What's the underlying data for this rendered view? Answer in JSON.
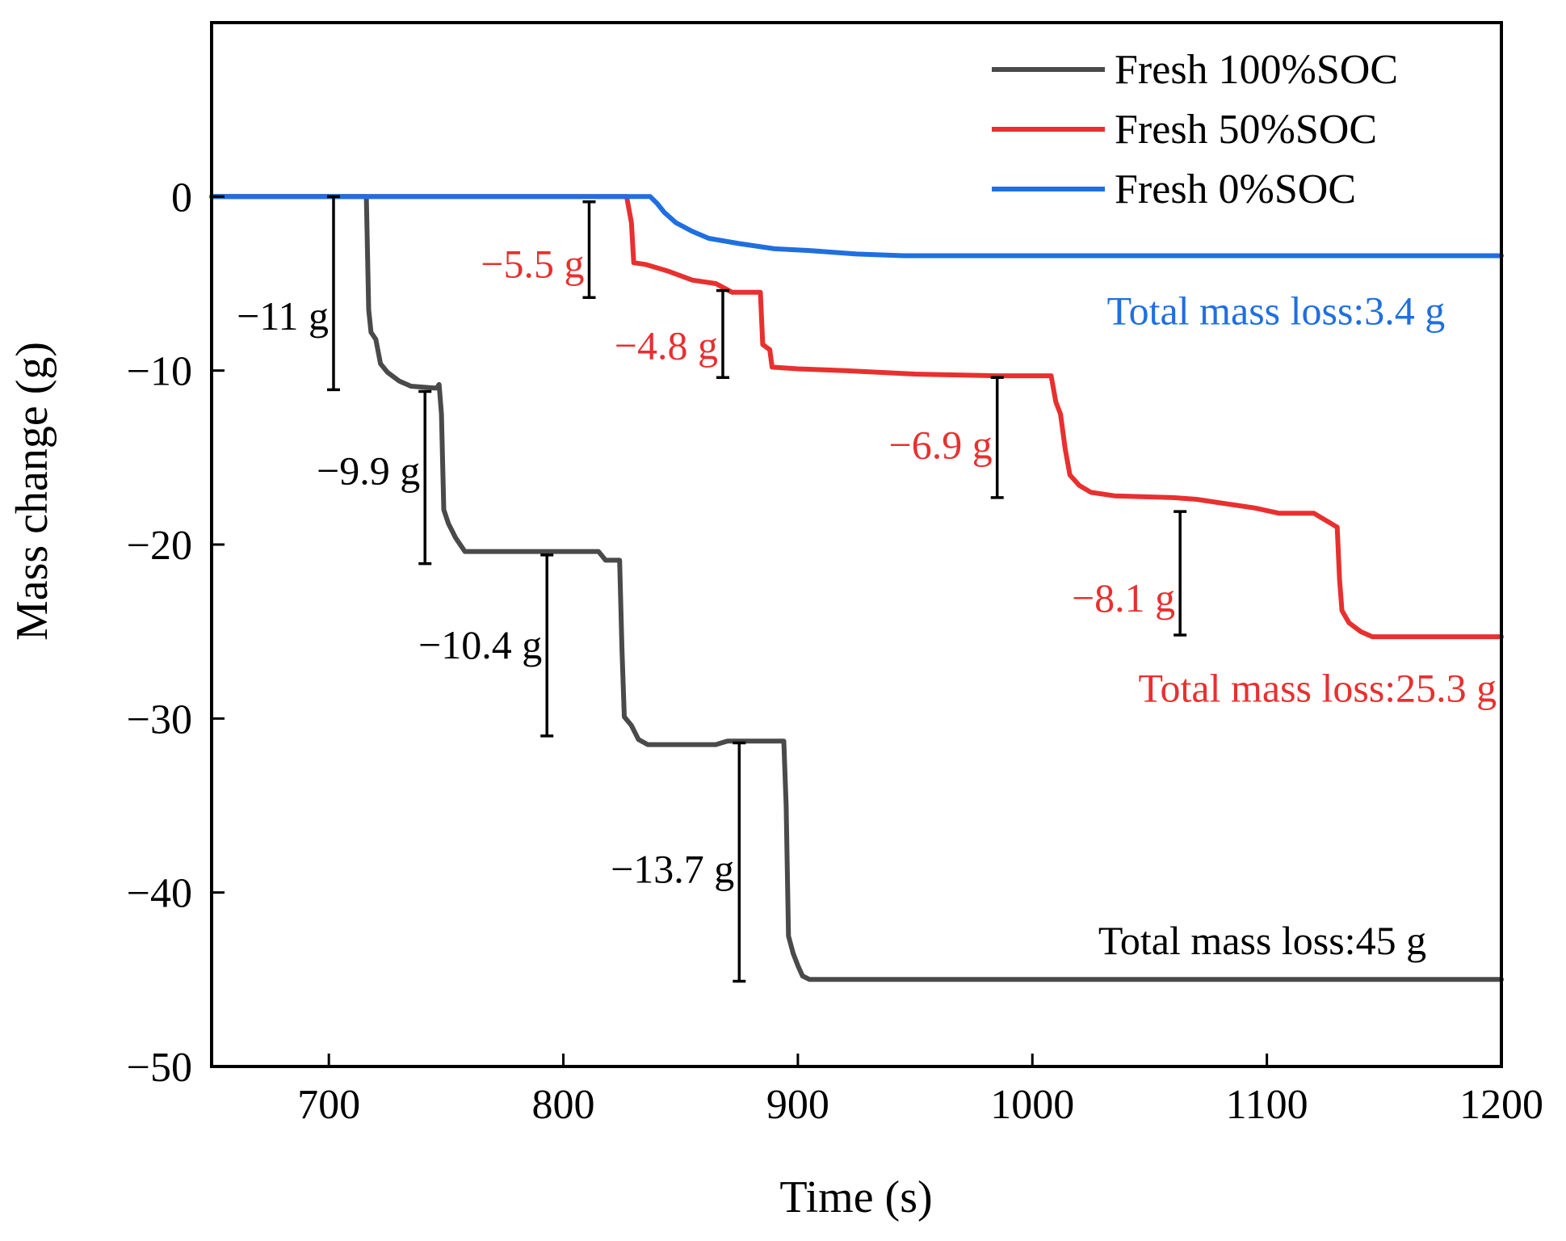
{
  "chart_data": {
    "type": "line",
    "title": "",
    "xlabel": "Time (s)",
    "ylabel": "Mass change (g)",
    "xlim": [
      650,
      1200
    ],
    "ylim": [
      -50,
      10
    ],
    "xticks": [
      700,
      800,
      900,
      1000,
      1100,
      1200
    ],
    "yticks": [
      0,
      -10,
      -20,
      -30,
      -40,
      -50
    ],
    "ytick_labels": [
      "0",
      "−10",
      "−20",
      "−30",
      "−40",
      "−50"
    ],
    "grid": false,
    "legend_position": "top-right",
    "series": [
      {
        "name": "Fresh 100%SOC",
        "color": "#4a4a4a",
        "points": [
          [
            650,
            0
          ],
          [
            716,
            0
          ],
          [
            717,
            -6.5
          ],
          [
            718,
            -7.8
          ],
          [
            720,
            -8.2
          ],
          [
            722,
            -9.6
          ],
          [
            725,
            -10.1
          ],
          [
            730,
            -10.6
          ],
          [
            735,
            -10.9
          ],
          [
            745,
            -11.0
          ],
          [
            746,
            -11.0
          ],
          [
            747,
            -10.8
          ],
          [
            748,
            -12.5
          ],
          [
            749,
            -18.0
          ],
          [
            751,
            -18.8
          ],
          [
            754,
            -19.6
          ],
          [
            758,
            -20.4
          ],
          [
            815,
            -20.4
          ],
          [
            818,
            -20.9
          ],
          [
            824,
            -20.9
          ],
          [
            825,
            -26.0
          ],
          [
            826,
            -29.9
          ],
          [
            829,
            -30.4
          ],
          [
            832,
            -31.2
          ],
          [
            836,
            -31.5
          ],
          [
            865,
            -31.5
          ],
          [
            870,
            -31.3
          ],
          [
            894,
            -31.3
          ],
          [
            895,
            -35.0
          ],
          [
            896,
            -42.5
          ],
          [
            898,
            -43.5
          ],
          [
            900,
            -44.2
          ],
          [
            902,
            -44.8
          ],
          [
            905,
            -45.0
          ],
          [
            1200,
            -45.0
          ]
        ]
      },
      {
        "name": "Fresh 50%SOC",
        "color": "#e8302f",
        "points": [
          [
            650,
            0
          ],
          [
            825,
            0
          ],
          [
            827,
            0
          ],
          [
            829,
            -1.5
          ],
          [
            830,
            -3.8
          ],
          [
            835,
            -3.9
          ],
          [
            845,
            -4.3
          ],
          [
            855,
            -4.8
          ],
          [
            865,
            -5.0
          ],
          [
            872,
            -5.5
          ],
          [
            884,
            -5.5
          ],
          [
            885,
            -8.5
          ],
          [
            888,
            -8.8
          ],
          [
            889,
            -9.8
          ],
          [
            900,
            -9.9
          ],
          [
            920,
            -10.0
          ],
          [
            950,
            -10.2
          ],
          [
            985,
            -10.3
          ],
          [
            995,
            -10.3
          ],
          [
            1008,
            -10.3
          ],
          [
            1010,
            -11.8
          ],
          [
            1012,
            -12.5
          ],
          [
            1014,
            -14.5
          ],
          [
            1016,
            -16.0
          ],
          [
            1020,
            -16.6
          ],
          [
            1025,
            -17.0
          ],
          [
            1035,
            -17.2
          ],
          [
            1060,
            -17.3
          ],
          [
            1070,
            -17.4
          ],
          [
            1085,
            -17.7
          ],
          [
            1095,
            -17.9
          ],
          [
            1105,
            -18.2
          ],
          [
            1120,
            -18.2
          ],
          [
            1130,
            -19.0
          ],
          [
            1131,
            -22.0
          ],
          [
            1132,
            -23.8
          ],
          [
            1135,
            -24.5
          ],
          [
            1140,
            -25.0
          ],
          [
            1145,
            -25.3
          ],
          [
            1200,
            -25.3
          ]
        ]
      },
      {
        "name": "Fresh 0%SOC",
        "color": "#1f6fe0",
        "points": [
          [
            650,
            0
          ],
          [
            837,
            0
          ],
          [
            840,
            -0.4
          ],
          [
            843,
            -0.9
          ],
          [
            848,
            -1.5
          ],
          [
            855,
            -2.0
          ],
          [
            862,
            -2.4
          ],
          [
            875,
            -2.7
          ],
          [
            890,
            -3.0
          ],
          [
            905,
            -3.1
          ],
          [
            925,
            -3.3
          ],
          [
            945,
            -3.4
          ],
          [
            1200,
            -3.4
          ]
        ]
      }
    ],
    "annotations": [
      {
        "label": "−11 g",
        "x": 702,
        "y_top": 0,
        "y_bottom": -11.1,
        "color": "#000000",
        "side": "left",
        "label_y": -6.9
      },
      {
        "label": "−9.9 g",
        "x": 741,
        "y_top": -11.2,
        "y_bottom": -21.1,
        "color": "#000000",
        "side": "left",
        "label_y": -15.8
      },
      {
        "label": "−10.4 g",
        "x": 793,
        "y_top": -20.6,
        "y_bottom": -31.0,
        "color": "#000000",
        "side": "left",
        "label_y": -25.8
      },
      {
        "label": "−13.7 g",
        "x": 875,
        "y_top": -31.4,
        "y_bottom": -45.1,
        "color": "#000000",
        "side": "left",
        "label_y": -38.7
      },
      {
        "label": "−5.5 g",
        "x": 811,
        "y_top": -0.3,
        "y_bottom": -5.8,
        "color": "#e8302f",
        "side": "left",
        "label_y": -3.9
      },
      {
        "label": "−4.8 g",
        "x": 868,
        "y_top": -5.4,
        "y_bottom": -10.4,
        "color": "#e8302f",
        "side": "left",
        "label_y": -8.6
      },
      {
        "label": "−6.9 g",
        "x": 985,
        "y_top": -10.4,
        "y_bottom": -17.3,
        "color": "#e8302f",
        "side": "left",
        "label_y": -14.3
      },
      {
        "label": "−8.1 g",
        "x": 1063,
        "y_top": -18.1,
        "y_bottom": -25.2,
        "color": "#e8302f",
        "side": "left",
        "label_y": -23.1
      }
    ],
    "totals": [
      {
        "label": "Total mass loss:3.4 g",
        "color": "#1f6fe0",
        "x_right": 1176,
        "y": -6.6
      },
      {
        "label": "Total mass loss:25.3 g",
        "color": "#e8302f",
        "x_right": 1198,
        "y": -28.3
      },
      {
        "label": "Total mass loss:45 g",
        "color": "#000000",
        "x_right": 1168,
        "y": -42.8
      }
    ]
  }
}
